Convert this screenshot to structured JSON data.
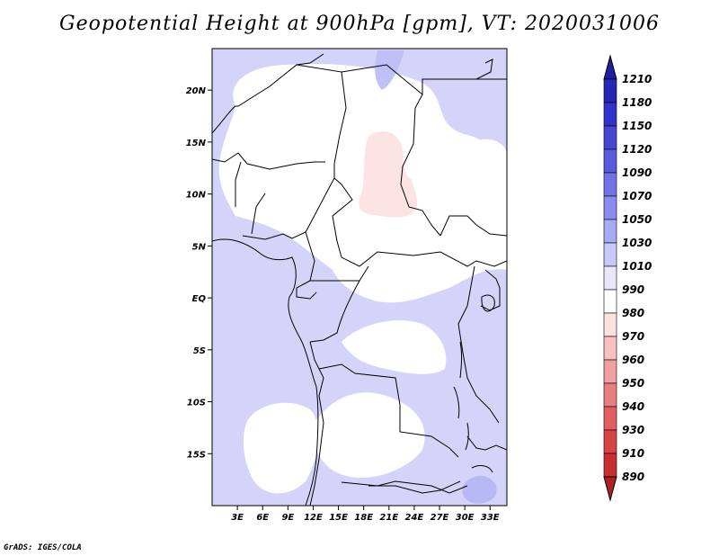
{
  "title": "Geopotential Height at 900hPa [gpm], VT: 2020031006",
  "footer": "GrADS: IGES/COLA",
  "map": {
    "lat_ticks": [
      "20N",
      "15N",
      "10N",
      "5N",
      "EQ",
      "5S",
      "10S",
      "15S"
    ],
    "lon_ticks": [
      "3E",
      "6E",
      "9E",
      "12E",
      "15E",
      "18E",
      "21E",
      "24E",
      "27E",
      "30E",
      "33E"
    ],
    "lat_range": [
      -20,
      24
    ],
    "lon_range": [
      0,
      35
    ]
  },
  "colorbar": {
    "levels": [
      "1210",
      "1180",
      "1150",
      "1120",
      "1090",
      "1070",
      "1050",
      "1030",
      "1010",
      "990",
      "980",
      "970",
      "960",
      "950",
      "940",
      "930",
      "910",
      "890"
    ],
    "colors": [
      "#1e1ea0",
      "#2626b4",
      "#3232c8",
      "#4646d2",
      "#5a5adc",
      "#7272e6",
      "#8c8cf0",
      "#aaaaf4",
      "#c8c8fa",
      "#e8e8fc",
      "#ffffff",
      "#fde0e0",
      "#f8c0c0",
      "#f0a0a0",
      "#e88080",
      "#e06060",
      "#d84444",
      "#c83030",
      "#b02020"
    ]
  }
}
